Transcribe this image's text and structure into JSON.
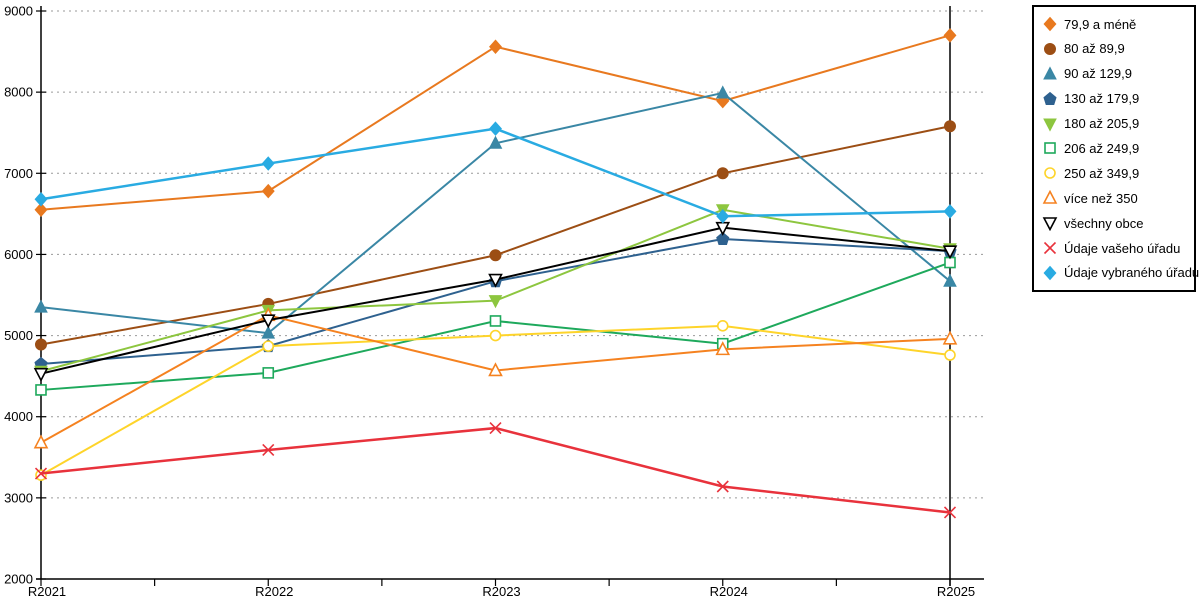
{
  "chart_data": {
    "type": "line",
    "title": "",
    "xlabel": "",
    "ylabel": "",
    "x": [
      "R2021",
      "R2022",
      "R2023",
      "R2024",
      "R2025"
    ],
    "ylim": [
      2000,
      9000
    ],
    "ytick_step": 1000,
    "yticks": [
      2000,
      3000,
      4000,
      5000,
      6000,
      7000,
      8000,
      9000
    ],
    "grid": "horizontal-dotted",
    "legend_position": "right-outside",
    "series": [
      {
        "name": "79,9 a méně",
        "color": "#e8791f",
        "marker": "diamond",
        "fill": true,
        "width": 2,
        "values": [
          6550,
          6780,
          8560,
          7890,
          8700
        ]
      },
      {
        "name": "80 až 89,9",
        "color": "#9c4e14",
        "marker": "circle",
        "fill": true,
        "width": 2,
        "values": [
          4890,
          5390,
          5990,
          7000,
          7580
        ]
      },
      {
        "name": "90 až 129,9",
        "color": "#3a87a5",
        "marker": "triangle-up",
        "fill": true,
        "width": 2,
        "values": [
          5350,
          5030,
          7370,
          7990,
          5670
        ]
      },
      {
        "name": "130 až 179,9",
        "color": "#2e618f",
        "marker": "pentagon",
        "fill": true,
        "width": 2,
        "values": [
          4650,
          4870,
          5670,
          6190,
          6040
        ]
      },
      {
        "name": "180 až 205,9",
        "color": "#8dc63f",
        "marker": "triangle-down",
        "fill": true,
        "width": 2,
        "values": [
          4560,
          5310,
          5430,
          6550,
          6070
        ]
      },
      {
        "name": "206 až 249,9",
        "color": "#1ea95c",
        "marker": "square",
        "fill": false,
        "width": 2,
        "values": [
          4330,
          4540,
          5180,
          4900,
          5900
        ]
      },
      {
        "name": "250 až 349,9",
        "color": "#fed42a",
        "marker": "circle",
        "fill": false,
        "width": 2,
        "values": [
          3280,
          4870,
          5000,
          5120,
          4760
        ]
      },
      {
        "name": "více než 350",
        "color": "#f58220",
        "marker": "triangle-up",
        "fill": false,
        "width": 2,
        "values": [
          3680,
          5250,
          4570,
          4830,
          4960
        ]
      },
      {
        "name": "všechny obce",
        "color": "#000000",
        "marker": "triangle-down",
        "fill": false,
        "width": 2,
        "values": [
          4530,
          5190,
          5690,
          6330,
          6040
        ]
      },
      {
        "name": "Údaje vašeho úřadu",
        "color": "#e8323c",
        "marker": "x",
        "fill": false,
        "width": 2.5,
        "values": [
          3300,
          3590,
          3860,
          3140,
          2820
        ]
      },
      {
        "name": "Údaje vybraného úřadu",
        "color": "#29abe2",
        "marker": "diamond",
        "fill": true,
        "width": 2.5,
        "values": [
          6680,
          7120,
          7550,
          6470,
          6530
        ]
      }
    ]
  }
}
